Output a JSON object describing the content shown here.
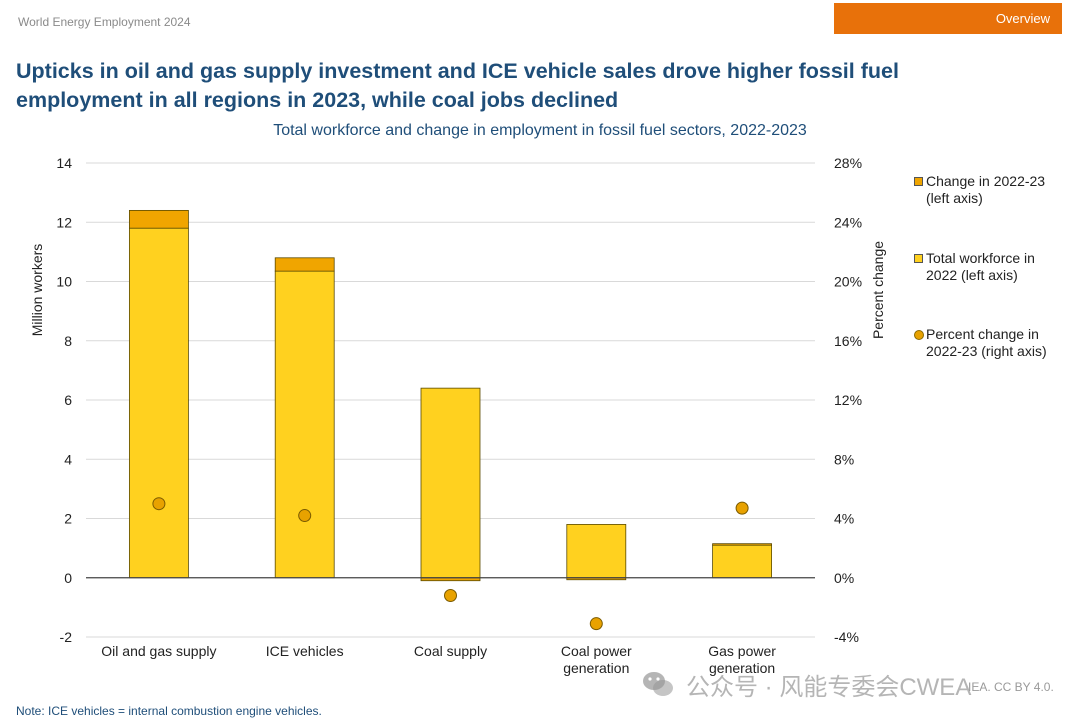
{
  "header": {
    "report_name": "World Energy Employment 2024",
    "section_badge": "Overview"
  },
  "title": "Upticks in oil and gas supply investment and ICE vehicle sales drove higher fossil fuel employment in all regions in 2023, while coal jobs declined",
  "subtitle": "Total workforce and change in employment in fossil fuel sectors, 2022-2023",
  "note": "Note: ICE vehicles = internal combustion engine vehicles.",
  "credit": "IEA. CC BY 4.0.",
  "watermark": "公众号 · 风能专委会CWEA",
  "colors": {
    "total": "#ffd11f",
    "change": "#f0a500",
    "point": "#e8a200",
    "title": "#1f4e79",
    "badge": "#e8710a"
  },
  "legend": [
    {
      "label": "Change in 2022-23 (left axis)",
      "swatch": "change"
    },
    {
      "label": "Total workforce in 2022 (left axis)",
      "swatch": "total"
    },
    {
      "label": "Percent change in 2022-23 (right axis)",
      "swatch": "point"
    }
  ],
  "chart_data": {
    "type": "bar",
    "categories": [
      "Oil and gas supply",
      "ICE vehicles",
      "Coal supply",
      "Coal power generation",
      "Gas power generation"
    ],
    "category_lines": [
      [
        "Oil and gas supply"
      ],
      [
        "ICE vehicles"
      ],
      [
        "Coal supply"
      ],
      [
        "Coal power",
        "generation"
      ],
      [
        "Gas power",
        "generation"
      ]
    ],
    "series": [
      {
        "name": "Total workforce in 2022 (left axis)",
        "values": [
          11.8,
          10.35,
          6.4,
          1.8,
          1.1
        ],
        "axis": "left"
      },
      {
        "name": "Change in 2022-23 (left axis)",
        "values": [
          0.6,
          0.45,
          -0.1,
          -0.05,
          0.05
        ],
        "axis": "left"
      },
      {
        "name": "Percent change in 2022-23 (right axis)",
        "values": [
          5.0,
          4.2,
          -1.2,
          -3.1,
          4.7
        ],
        "axis": "right"
      }
    ],
    "ylabel": "Million workers",
    "ylabel_right": "Percent change",
    "ylim": [
      -2,
      14
    ],
    "yticks": [
      -2,
      0,
      2,
      4,
      6,
      8,
      10,
      12,
      14
    ],
    "ylim_right": [
      -4,
      28
    ],
    "yticks_right": [
      "-4%",
      "0%",
      "4%",
      "8%",
      "12%",
      "16%",
      "20%",
      "24%",
      "28%"
    ],
    "grid": true,
    "legend_position": "right"
  }
}
